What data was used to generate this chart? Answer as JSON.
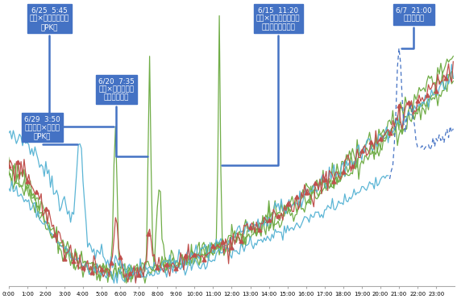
{
  "x_ticks": [
    "0:00",
    "1:00",
    "2:00",
    "3:00",
    "4:00",
    "5:00",
    "6:00",
    "7:00",
    "8:00",
    "9:00",
    "10:00",
    "11:00",
    "12:00",
    "13:00",
    "14:00",
    "15:00",
    "16:00",
    "17:00",
    "18:00",
    "19:00",
    "20:00",
    "21:00",
    "22:00",
    "23:00"
  ],
  "background_color": "#ffffff",
  "grid_color": "#c8c8c8",
  "annotation_box_color": "#4472C4",
  "color_green": "#70AD47",
  "color_lightblue": "#5BB5D5",
  "color_darkblue": "#4472C4",
  "color_red": "#C0504D",
  "ann1_text": "6/25  5:45\n日本×コロンビア戦\n「PK」",
  "ann2_text": "6/20  7:35\n日本×ギリシャ戦\n「サッカー」",
  "ann3_text": "6/29  3:50\nブラジル×チリ戦\n「PK」",
  "ann4_text": "6/15  11:20\n日本×コートジボワー\nル戦「ドログバ」",
  "ann5_text": "6/7  21:00\n「まゆゆ」"
}
